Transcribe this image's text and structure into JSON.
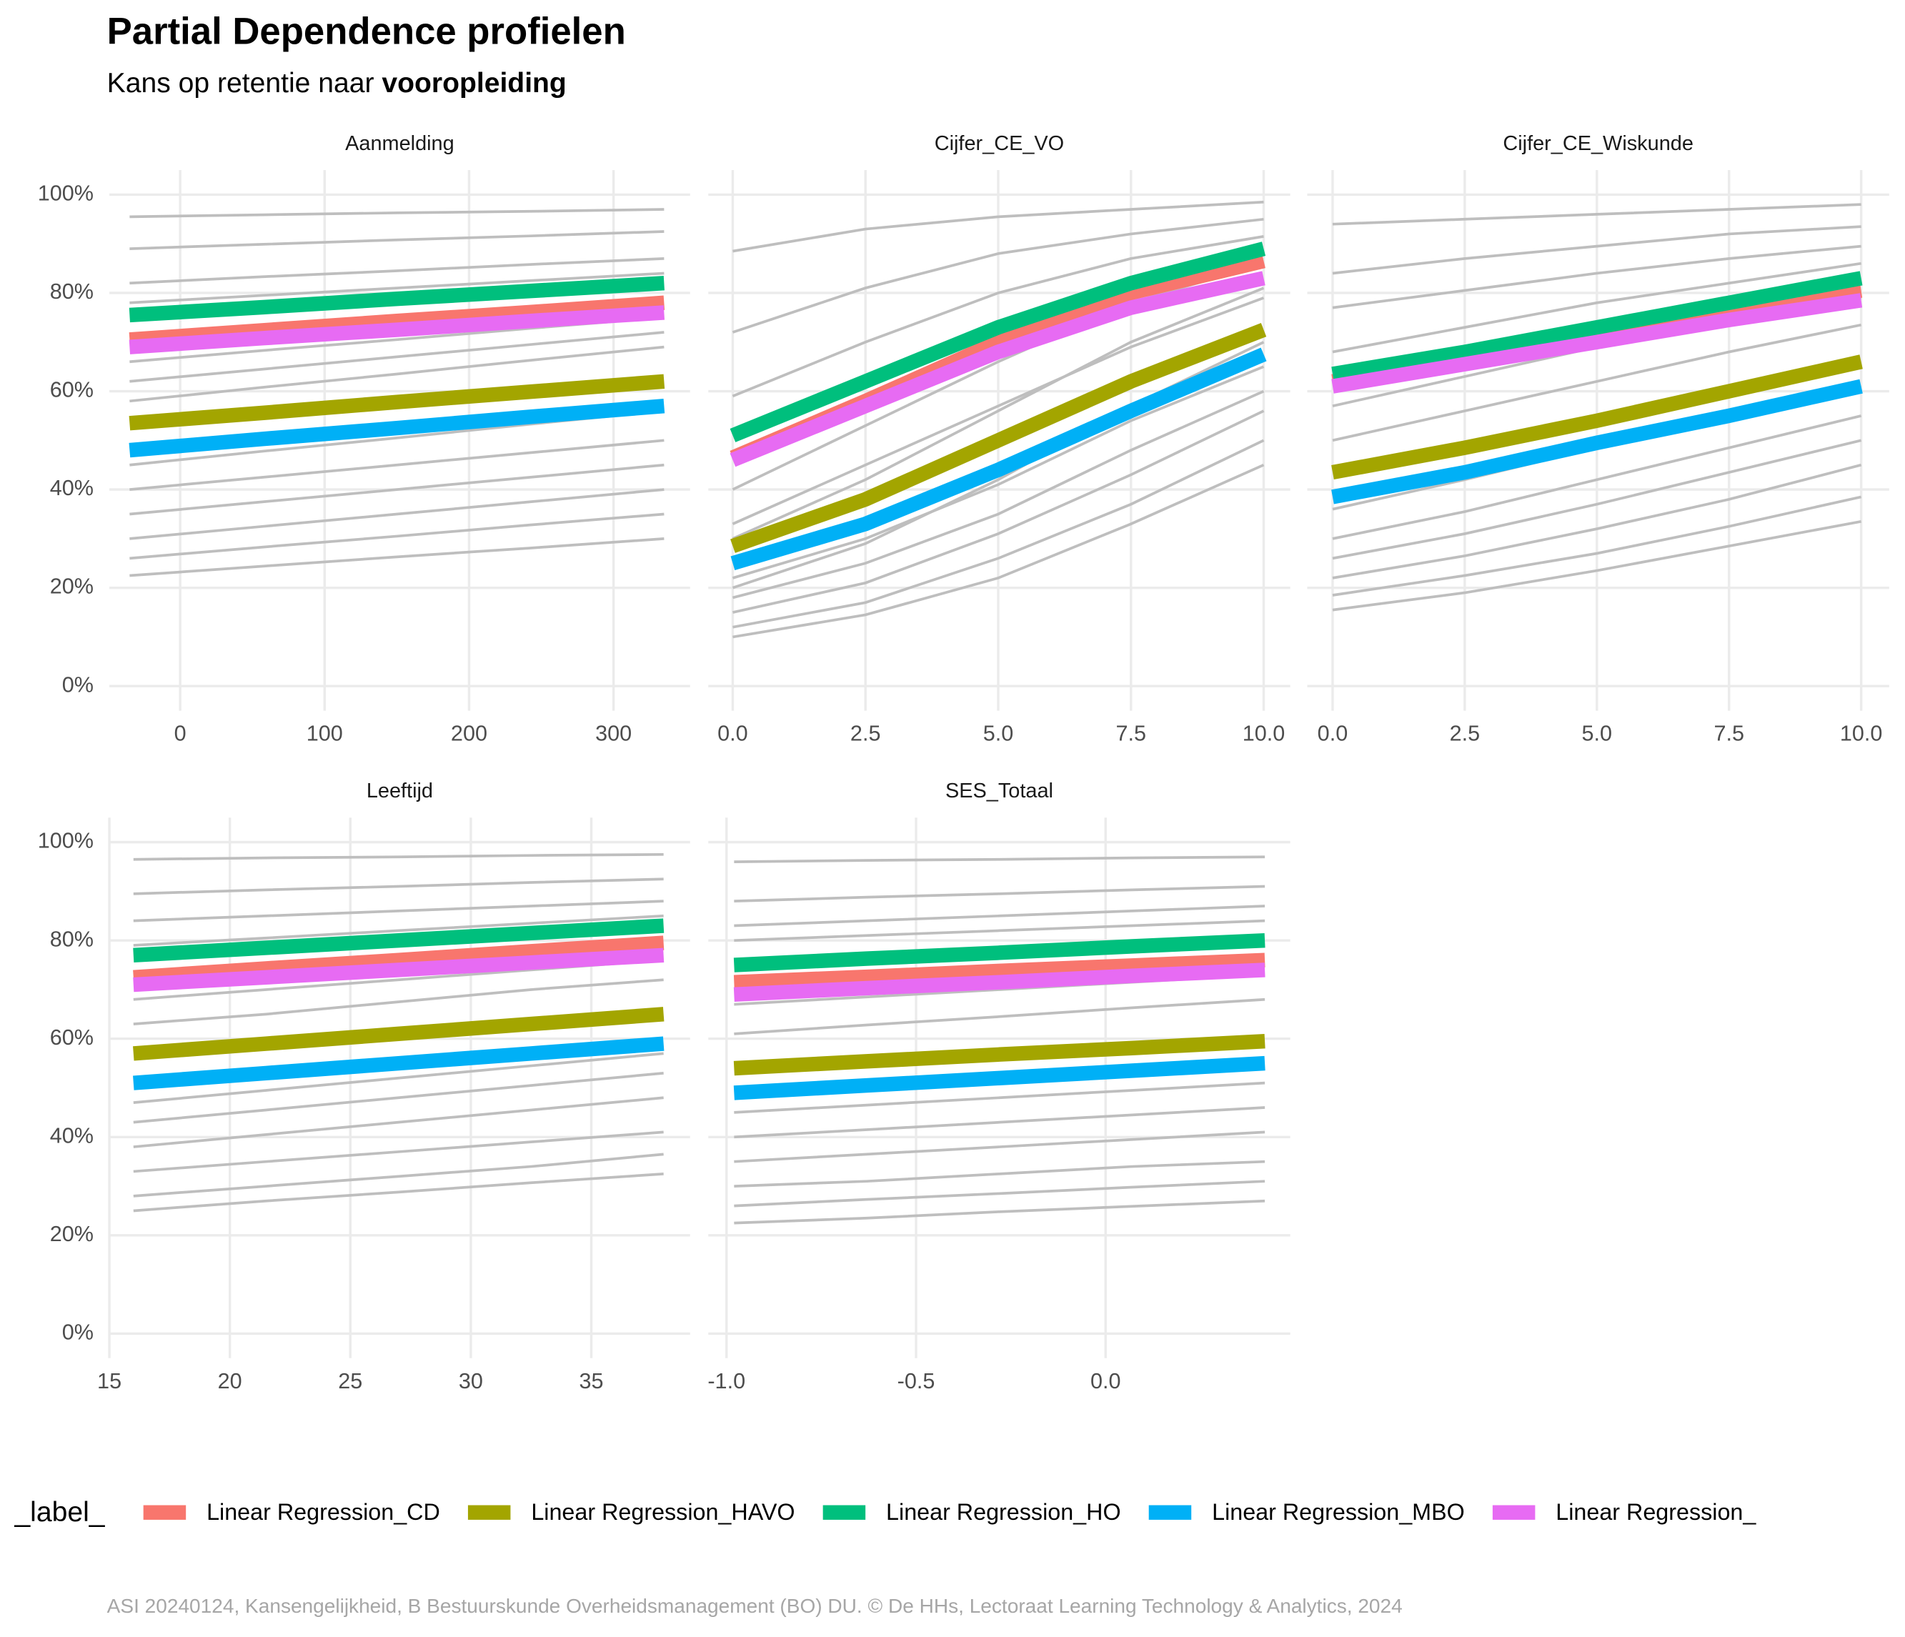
{
  "title": "Partial Dependence profielen",
  "subtitle": {
    "text": "Kans op retentie naar",
    "emphasis": "vooropleiding"
  },
  "legend": {
    "title": "_label_",
    "entries": [
      {
        "name": "Linear Regression_CD",
        "color": "#F8766D"
      },
      {
        "name": "Linear Regression_HAVO",
        "color": "#A3A500"
      },
      {
        "name": "Linear Regression_HO",
        "color": "#00BF7D"
      },
      {
        "name": "Linear Regression_MBO",
        "color": "#00B0F6"
      },
      {
        "name": "Linear Regression_",
        "color": "#E76BF3"
      }
    ]
  },
  "caption": "ASI 20240124, Kansengelijkheid, B Bestuurskunde Overheidsmanagement (BO) DU. © De HHs, Lectoraat Learning Technology & Analytics, 2024",
  "chart_data": [
    {
      "type": "line",
      "title": "Aanmelding",
      "grid": true,
      "background_color": "#BEBEBE",
      "x": [
        -35,
        57.5,
        150,
        242.5,
        335
      ],
      "xlim": [
        -49,
        353
      ],
      "xticks": [
        0,
        100,
        200,
        300
      ],
      "ylim": [
        -5,
        105
      ],
      "yticks": [
        {
          "value": 0,
          "label": "0%"
        },
        {
          "value": 20,
          "label": "20%"
        },
        {
          "value": 40,
          "label": "40%"
        },
        {
          "value": 60,
          "label": "60%"
        },
        {
          "value": 80,
          "label": "80%"
        },
        {
          "value": 100,
          "label": "100%"
        }
      ],
      "background_series": [
        [
          95.5,
          95.9,
          96.3,
          96.6,
          97
        ],
        [
          89,
          89.9,
          90.8,
          91.6,
          92.5
        ],
        [
          82,
          83.3,
          84.5,
          85.8,
          87
        ],
        [
          78,
          79.5,
          81,
          82.5,
          84
        ],
        [
          66,
          68.3,
          70.5,
          72.8,
          75
        ],
        [
          62,
          64.5,
          67,
          69.5,
          72
        ],
        [
          58,
          60.8,
          63.5,
          66.3,
          69
        ],
        [
          45,
          47.8,
          50.5,
          53.3,
          56
        ],
        [
          40,
          42.5,
          45,
          47.5,
          50
        ],
        [
          35,
          37.5,
          40,
          42.5,
          45
        ],
        [
          30,
          32.5,
          35,
          37.5,
          40
        ],
        [
          26,
          28.3,
          30.5,
          32.8,
          35
        ],
        [
          22.5,
          24.4,
          26.3,
          28.1,
          30
        ]
      ],
      "series": [
        {
          "color": "#F8766D",
          "values": [
            70.5,
            72.4,
            74.3,
            76.1,
            78
          ]
        },
        {
          "color": "#A3A500",
          "values": [
            53.5,
            55.6,
            57.8,
            59.9,
            62
          ]
        },
        {
          "color": "#00BF7D",
          "values": [
            75.5,
            77.1,
            78.8,
            80.4,
            82
          ]
        },
        {
          "color": "#00B0F6",
          "values": [
            48,
            50.3,
            52.5,
            54.8,
            57
          ]
        },
        {
          "color": "#E76BF3",
          "values": [
            69,
            70.8,
            72.5,
            74.3,
            76
          ]
        }
      ]
    },
    {
      "type": "line",
      "title": "Cijfer_CE_VO",
      "grid": true,
      "background_color": "#BEBEBE",
      "x": [
        0,
        2.5,
        5,
        7.5,
        10
      ],
      "xlim": [
        -0.46,
        10.5
      ],
      "xticks": [
        {
          "value": 0,
          "label": "0.0"
        },
        2.5,
        {
          "value": 5,
          "label": "5.0"
        },
        7.5,
        {
          "value": 10,
          "label": "10.0"
        }
      ],
      "ylim": [
        -5,
        105
      ],
      "yticks": [
        0,
        20,
        40,
        60,
        80,
        100
      ],
      "background_series": [
        [
          88.5,
          93,
          95.5,
          97,
          98.5
        ],
        [
          72,
          81,
          88,
          92,
          95
        ],
        [
          59,
          70,
          80,
          87,
          91.5
        ],
        [
          40,
          53,
          66,
          78,
          86
        ],
        [
          33,
          45,
          57,
          69,
          79
        ],
        [
          30,
          42,
          56,
          70,
          81
        ],
        [
          22,
          30,
          41,
          54,
          65
        ],
        [
          20,
          29,
          42,
          57,
          70
        ],
        [
          18,
          25,
          35,
          48,
          60
        ],
        [
          15,
          21,
          31,
          43,
          56
        ],
        [
          12,
          17,
          26,
          37,
          50
        ],
        [
          10,
          14.5,
          22,
          33,
          45
        ]
      ],
      "series": [
        {
          "color": "#F8766D",
          "values": [
            46.5,
            58,
            70,
            80,
            86.5
          ]
        },
        {
          "color": "#A3A500",
          "values": [
            28.5,
            38,
            50,
            62,
            72.5
          ]
        },
        {
          "color": "#00BF7D",
          "values": [
            51,
            62,
            73,
            82,
            89
          ]
        },
        {
          "color": "#00B0F6",
          "values": [
            25,
            33,
            44,
            56,
            67.5
          ]
        },
        {
          "color": "#E76BF3",
          "values": [
            46,
            57,
            68,
            77,
            83
          ]
        }
      ]
    },
    {
      "type": "line",
      "title": "Cijfer_CE_Wiskunde",
      "grid": true,
      "background_color": "#BEBEBE",
      "x": [
        0,
        2.5,
        5,
        7.5,
        10
      ],
      "xlim": [
        -0.48,
        10.53
      ],
      "xticks": [
        {
          "value": 0,
          "label": "0.0"
        },
        2.5,
        {
          "value": 5,
          "label": "5.0"
        },
        7.5,
        {
          "value": 10,
          "label": "10.0"
        }
      ],
      "ylim": [
        -5,
        105
      ],
      "yticks": [
        0,
        20,
        40,
        60,
        80,
        100
      ],
      "background_series": [
        [
          94,
          95,
          96,
          97,
          98
        ],
        [
          84,
          87,
          89.5,
          92,
          93.5
        ],
        [
          77,
          80.5,
          84,
          87,
          89.5
        ],
        [
          68,
          73,
          78,
          82,
          86
        ],
        [
          57,
          63,
          69,
          74,
          79
        ],
        [
          50,
          56,
          62,
          68,
          73.5
        ],
        [
          36,
          42,
          48.5,
          55,
          61
        ],
        [
          30,
          35.5,
          42,
          48.5,
          55
        ],
        [
          26,
          31,
          37,
          43.5,
          50
        ],
        [
          22,
          26.5,
          32,
          38,
          45
        ],
        [
          18.5,
          22.5,
          27,
          32.5,
          38.5
        ],
        [
          15.5,
          19,
          23.5,
          28.5,
          33.5
        ]
      ],
      "series": [
        {
          "color": "#F8766D",
          "values": [
            62,
            66.5,
            71.5,
            76.5,
            80.5
          ]
        },
        {
          "color": "#A3A500",
          "values": [
            43.5,
            48.5,
            54,
            60,
            66
          ]
        },
        {
          "color": "#00BF7D",
          "values": [
            63.5,
            68,
            73,
            78,
            83
          ]
        },
        {
          "color": "#00B0F6",
          "values": [
            38.5,
            43.5,
            49.5,
            55,
            61
          ]
        },
        {
          "color": "#E76BF3",
          "values": [
            61,
            65.5,
            70,
            74.5,
            78.5
          ]
        }
      ]
    },
    {
      "type": "line",
      "title": "Leeftijd",
      "grid": true,
      "background_color": "#BEBEBE",
      "x": [
        16,
        21.5,
        27,
        32.5,
        38
      ],
      "xlim": [
        15,
        39.1
      ],
      "xticks": [
        15,
        20,
        25,
        30,
        35
      ],
      "ylim": [
        -5,
        105
      ],
      "yticks": [
        {
          "value": 0,
          "label": "0%"
        },
        {
          "value": 20,
          "label": "20%"
        },
        {
          "value": 40,
          "label": "40%"
        },
        {
          "value": 60,
          "label": "60%"
        },
        {
          "value": 80,
          "label": "80%"
        },
        {
          "value": 100,
          "label": "100%"
        }
      ],
      "background_series": [
        [
          96.5,
          96.8,
          97,
          97.3,
          97.5
        ],
        [
          89.5,
          90.3,
          91,
          91.8,
          92.5
        ],
        [
          84,
          85,
          86,
          87,
          88
        ],
        [
          79,
          80.5,
          82,
          83.5,
          85
        ],
        [
          68,
          70,
          72,
          74,
          76
        ],
        [
          63,
          65,
          67.5,
          70,
          72
        ],
        [
          47,
          49.5,
          52,
          54.5,
          57
        ],
        [
          43,
          45.5,
          48,
          50.5,
          53
        ],
        [
          38,
          40.5,
          43,
          45.5,
          48
        ],
        [
          33,
          35,
          37,
          39,
          41
        ],
        [
          28,
          30,
          32,
          34,
          36.5
        ],
        [
          25,
          27,
          28.8,
          30.7,
          32.5
        ]
      ],
      "series": [
        {
          "color": "#F8766D",
          "values": [
            72.5,
            74.3,
            76,
            77.8,
            79.5
          ]
        },
        {
          "color": "#A3A500",
          "values": [
            57,
            59,
            61,
            63,
            65
          ]
        },
        {
          "color": "#00BF7D",
          "values": [
            77,
            78.5,
            80,
            81.5,
            83
          ]
        },
        {
          "color": "#00B0F6",
          "values": [
            51,
            53,
            55,
            57,
            59
          ]
        },
        {
          "color": "#E76BF3",
          "values": [
            71,
            72.5,
            74,
            75.5,
            77
          ]
        }
      ]
    },
    {
      "type": "line",
      "title": "SES_Totaal",
      "grid": true,
      "background_color": "#BEBEBE",
      "x": [
        -0.98,
        -0.63,
        -0.28,
        0.07,
        0.42
      ],
      "xlim": [
        -1.048,
        0.487
      ],
      "xticks": [
        {
          "value": -1,
          "label": "-1.0"
        },
        -0.5,
        {
          "value": 0,
          "label": "0.0"
        }
      ],
      "ylim": [
        -5,
        105
      ],
      "yticks": [
        0,
        20,
        40,
        60,
        80,
        100
      ],
      "background_series": [
        [
          96,
          96.3,
          96.5,
          96.8,
          97
        ],
        [
          88,
          88.8,
          89.5,
          90.3,
          91
        ],
        [
          83,
          84,
          85,
          86,
          87
        ],
        [
          80,
          81,
          82,
          83,
          84
        ],
        [
          67,
          68.5,
          70,
          71.5,
          73
        ],
        [
          61,
          62.8,
          64.5,
          66.3,
          68
        ],
        [
          45,
          46.5,
          48,
          49.5,
          51
        ],
        [
          40,
          41.5,
          43,
          44.5,
          46
        ],
        [
          35,
          36.5,
          38,
          39.5,
          41
        ],
        [
          30,
          31,
          32.5,
          34,
          35
        ],
        [
          26,
          27.3,
          28.5,
          29.8,
          31
        ],
        [
          22.5,
          23.5,
          24.8,
          25.9,
          27
        ]
      ],
      "series": [
        {
          "color": "#F8766D",
          "values": [
            71.5,
            72.6,
            73.8,
            74.9,
            76
          ]
        },
        {
          "color": "#A3A500",
          "values": [
            54,
            55.4,
            56.8,
            58.1,
            59.5
          ]
        },
        {
          "color": "#00BF7D",
          "values": [
            75,
            76.3,
            77.5,
            78.8,
            80
          ]
        },
        {
          "color": "#00B0F6",
          "values": [
            49,
            50.5,
            52,
            53.5,
            55
          ]
        },
        {
          "color": "#E76BF3",
          "values": [
            69,
            70.3,
            71.5,
            72.8,
            74
          ]
        }
      ]
    }
  ]
}
